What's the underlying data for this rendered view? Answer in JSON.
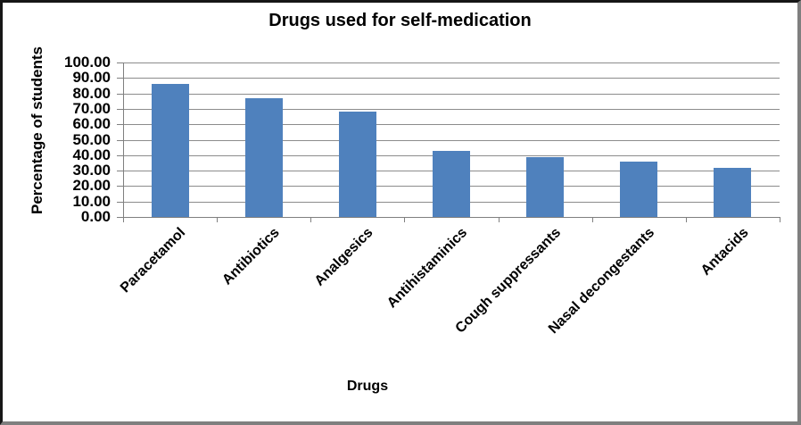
{
  "chart_data": {
    "type": "bar",
    "title": "Drugs used for self-medication",
    "xlabel": "Drugs",
    "ylabel": "Percentage of students",
    "categories": [
      "Paracetamol",
      "Antibiotics",
      "Analgesics",
      "Antihistaminics",
      "Cough suppressants",
      "Nasal decongestants",
      "Antacids"
    ],
    "values": [
      86,
      77,
      68,
      43,
      39,
      36,
      32
    ],
    "ylim": [
      0,
      100
    ],
    "ytick_step": 10,
    "ytick_decimals": 2,
    "ytick_labels": [
      "0.00",
      "10.00",
      "20.00",
      "30.00",
      "40.00",
      "50.00",
      "60.00",
      "70.00",
      "80.00",
      "90.00",
      "100.00"
    ],
    "grid": true,
    "legend": false,
    "colors": {
      "bar": "#4f81bd",
      "grid": "#8c8c8c",
      "axis": "#808080",
      "text": "#000000",
      "background": "#ffffff"
    }
  }
}
